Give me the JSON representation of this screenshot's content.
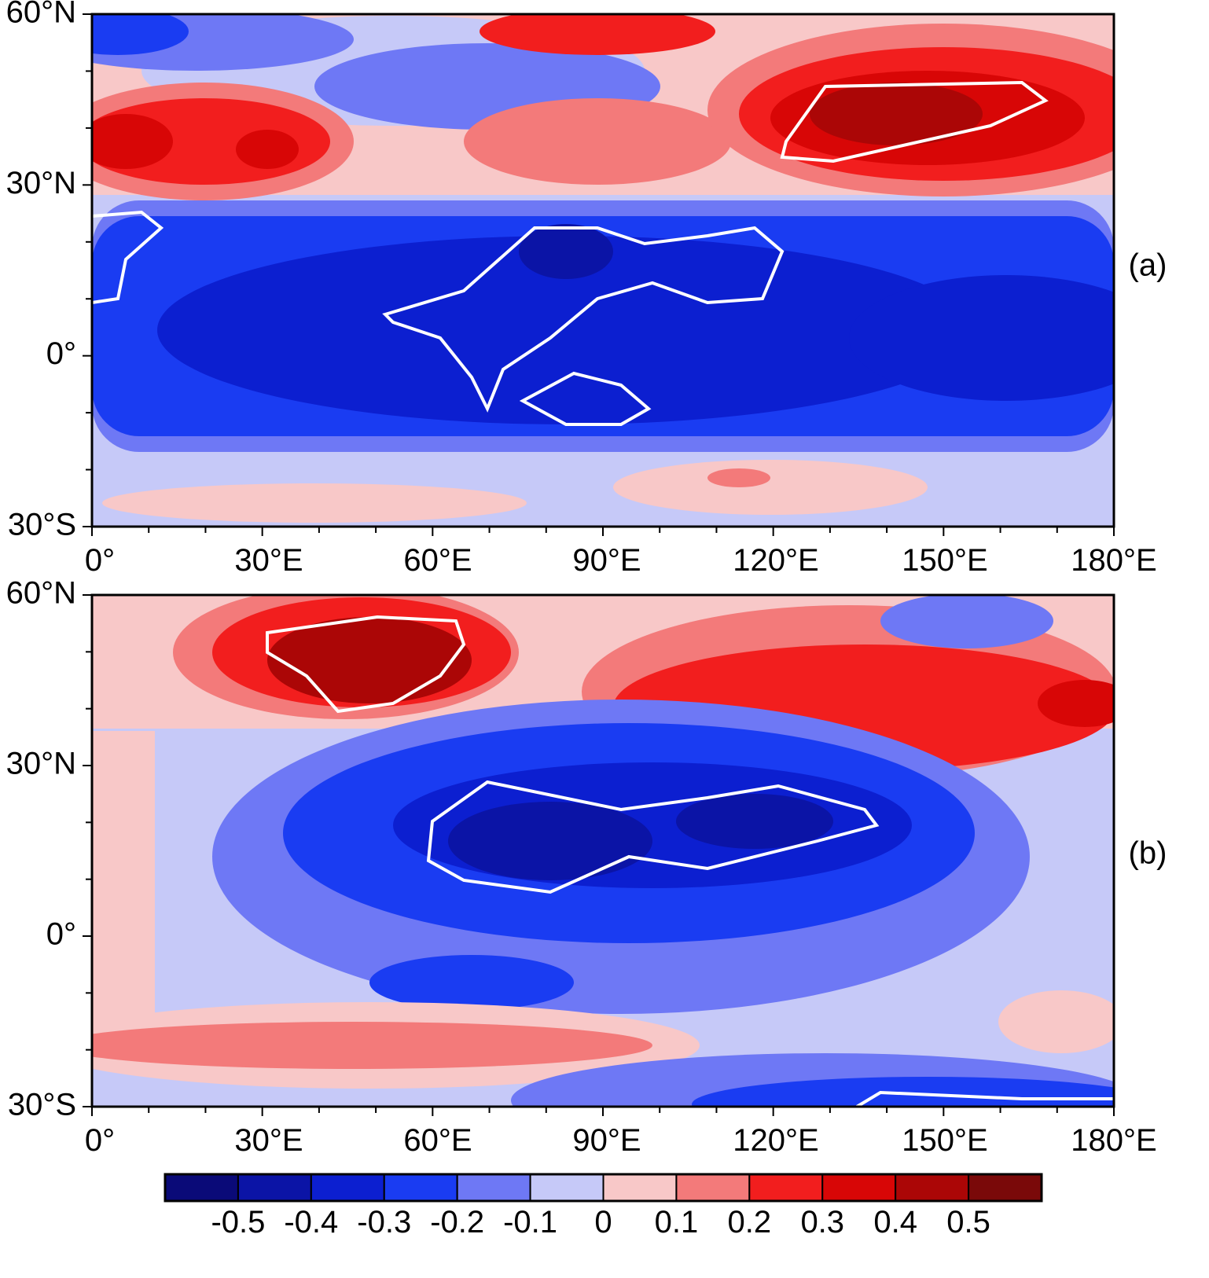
{
  "panels": [
    {
      "label": "(a)"
    },
    {
      "label": "(b)"
    }
  ],
  "lat_labels": [
    "60°N",
    "30°N",
    "0°",
    "30°S"
  ],
  "lon_labels": [
    "0°",
    "30°E",
    "60°E",
    "90°E",
    "120°E",
    "150°E",
    "180°E"
  ],
  "colorbar": {
    "colors": [
      "#0a0a78",
      "#0b14a6",
      "#0c1fd0",
      "#1a3cf2",
      "#6e78f5",
      "#c6c9f8",
      "#f8c8c8",
      "#f37a7a",
      "#f21e1e",
      "#d80606",
      "#ab0606",
      "#7a0909"
    ],
    "labels": [
      -0.5,
      -0.4,
      -0.3,
      -0.2,
      -0.1,
      0,
      0.1,
      0.2,
      0.3,
      0.4,
      0.5
    ]
  }
}
